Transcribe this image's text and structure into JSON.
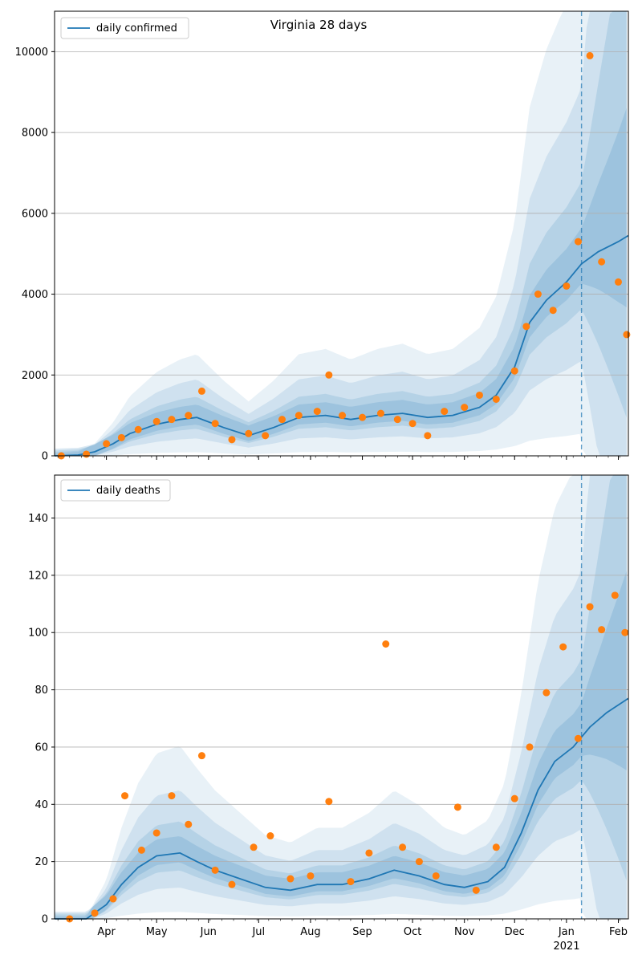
{
  "figure_title": "Virginia 28 days",
  "month_labels": [
    "Apr",
    "May",
    "Jun",
    "Jul",
    "Aug",
    "Sep",
    "Oct",
    "Nov",
    "Dec",
    "Jan",
    "Feb"
  ],
  "year_label": "2021",
  "colors": {
    "line": "#1f77b4",
    "points": "#ff7f0e",
    "band": "#1f77b4",
    "grid": "#b0b0b0"
  },
  "chart_data": [
    {
      "type": "line",
      "title": "Virginia 28 days",
      "legend": [
        "daily confirmed"
      ],
      "legend_position": "top-left",
      "x_axis": {
        "type": "date",
        "range": [
          "2020-03-01",
          "2021-02-07"
        ],
        "ticks": [
          "Apr",
          "May",
          "Jun",
          "Jul",
          "Aug",
          "Sep",
          "Oct",
          "Nov",
          "Dec",
          "Jan",
          "Feb"
        ]
      },
      "y_axis": {
        "range": [
          0,
          11000
        ],
        "ticks": [
          0,
          2000,
          4000,
          6000,
          8000,
          10000
        ]
      },
      "grid": "horizontal",
      "forecast_start": "2021-01-10",
      "series": [
        {
          "name": "daily confirmed",
          "kind": "line",
          "x": [
            "2020-03-01",
            "2020-03-15",
            "2020-03-25",
            "2020-04-05",
            "2020-04-15",
            "2020-05-01",
            "2020-05-15",
            "2020-05-25",
            "2020-06-10",
            "2020-06-25",
            "2020-07-10",
            "2020-07-25",
            "2020-08-10",
            "2020-08-25",
            "2020-09-10",
            "2020-09-25",
            "2020-10-10",
            "2020-10-25",
            "2020-11-10",
            "2020-11-20",
            "2020-12-01",
            "2020-12-10",
            "2020-12-20",
            "2021-01-01",
            "2021-01-10",
            "2021-01-20",
            "2021-02-01",
            "2021-02-07"
          ],
          "y": [
            0,
            20,
            100,
            300,
            550,
            780,
            900,
            950,
            700,
            500,
            700,
            950,
            1000,
            900,
            1000,
            1050,
            950,
            1000,
            1200,
            1500,
            2200,
            3300,
            3850,
            4300,
            4750,
            5050,
            5300,
            5450
          ]
        },
        {
          "name": "observed",
          "kind": "scatter",
          "x": [
            "2020-03-05",
            "2020-03-20",
            "2020-04-01",
            "2020-04-10",
            "2020-04-20",
            "2020-05-01",
            "2020-05-10",
            "2020-05-20",
            "2020-05-28",
            "2020-06-05",
            "2020-06-15",
            "2020-06-25",
            "2020-07-05",
            "2020-07-15",
            "2020-07-25",
            "2020-08-05",
            "2020-08-12",
            "2020-08-20",
            "2020-09-01",
            "2020-09-12",
            "2020-09-22",
            "2020-10-01",
            "2020-10-10",
            "2020-10-20",
            "2020-11-01",
            "2020-11-10",
            "2020-11-20",
            "2020-12-01",
            "2020-12-08",
            "2020-12-15",
            "2020-12-24",
            "2021-01-01",
            "2021-01-08",
            "2021-01-15",
            "2021-01-22",
            "2021-02-01",
            "2021-02-06"
          ],
          "y": [
            0,
            40,
            300,
            450,
            650,
            850,
            900,
            1000,
            1600,
            800,
            400,
            550,
            500,
            900,
            1000,
            1100,
            2000,
            1000,
            950,
            1050,
            900,
            800,
            500,
            1100,
            1200,
            1500,
            1400,
            2100,
            3200,
            4000,
            3600,
            4200,
            5300,
            9900,
            4800,
            4300,
            3000
          ]
        }
      ]
    },
    {
      "type": "line",
      "legend": [
        "daily deaths"
      ],
      "legend_position": "top-left",
      "x_axis": {
        "type": "date",
        "range": [
          "2020-03-01",
          "2021-02-07"
        ],
        "ticks": [
          "Apr",
          "May",
          "Jun",
          "Jul",
          "Aug",
          "Sep",
          "Oct",
          "Nov",
          "Dec",
          "Jan",
          "Feb"
        ]
      },
      "y_axis": {
        "range": [
          0,
          155
        ],
        "ticks": [
          0,
          20,
          40,
          60,
          80,
          100,
          120,
          140
        ]
      },
      "grid": "horizontal",
      "forecast_start": "2021-01-10",
      "series": [
        {
          "name": "daily deaths",
          "kind": "line",
          "x": [
            "2020-03-01",
            "2020-03-20",
            "2020-04-01",
            "2020-04-10",
            "2020-04-20",
            "2020-05-01",
            "2020-05-15",
            "2020-05-25",
            "2020-06-05",
            "2020-06-20",
            "2020-07-05",
            "2020-07-20",
            "2020-08-05",
            "2020-08-20",
            "2020-09-05",
            "2020-09-20",
            "2020-10-05",
            "2020-10-20",
            "2020-11-01",
            "2020-11-15",
            "2020-11-25",
            "2020-12-05",
            "2020-12-15",
            "2020-12-25",
            "2021-01-05",
            "2021-01-15",
            "2021-01-25",
            "2021-02-07"
          ],
          "y": [
            0,
            0,
            5,
            12,
            18,
            22,
            23,
            20,
            17,
            14,
            11,
            10,
            12,
            12,
            14,
            17,
            15,
            12,
            11,
            13,
            18,
            30,
            45,
            55,
            60,
            67,
            72,
            77
          ]
        },
        {
          "name": "observed",
          "kind": "scatter",
          "x": [
            "2020-03-10",
            "2020-03-25",
            "2020-04-05",
            "2020-04-12",
            "2020-04-22",
            "2020-05-01",
            "2020-05-10",
            "2020-05-20",
            "2020-05-28",
            "2020-06-05",
            "2020-06-15",
            "2020-06-28",
            "2020-07-08",
            "2020-07-20",
            "2020-08-01",
            "2020-08-12",
            "2020-08-25",
            "2020-09-05",
            "2020-09-15",
            "2020-09-25",
            "2020-10-05",
            "2020-10-15",
            "2020-10-28",
            "2020-11-08",
            "2020-11-20",
            "2020-12-01",
            "2020-12-10",
            "2020-12-20",
            "2020-12-30",
            "2021-01-08",
            "2021-01-15",
            "2021-01-22",
            "2021-01-30",
            "2021-02-05"
          ],
          "y": [
            0,
            2,
            7,
            43,
            24,
            30,
            43,
            33,
            57,
            17,
            12,
            25,
            29,
            14,
            15,
            41,
            13,
            23,
            96,
            25,
            20,
            15,
            39,
            10,
            25,
            42,
            60,
            79,
            95,
            63,
            109,
            101,
            113,
            100
          ]
        }
      ]
    }
  ]
}
